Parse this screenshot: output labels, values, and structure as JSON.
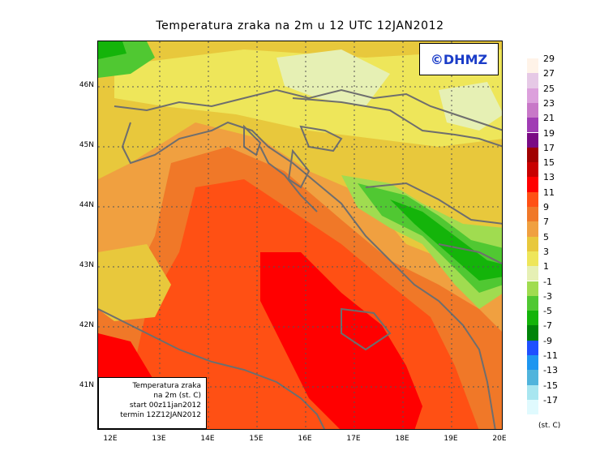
{
  "title": "Temperatura zraka na 2m u 12 UTC 12JAN2012",
  "logo": "©DHMZ",
  "info_box": {
    "line1": "Temperatura zraka",
    "line2": "na 2m (st. C)",
    "line3": "start 00z11jan2012",
    "line4": "termin 12Z12JAN2012"
  },
  "lat_labels": [
    "46N",
    "45N",
    "44N",
    "43N",
    "42N",
    "41N"
  ],
  "lon_labels": [
    "12E",
    "13E",
    "14E",
    "15E",
    "16E",
    "17E",
    "18E",
    "19E",
    "20E"
  ],
  "legend": {
    "unit": "(st. C)",
    "labels": [
      "29",
      "27",
      "25",
      "23",
      "21",
      "19",
      "17",
      "15",
      "13",
      "11",
      "9",
      "7",
      "5",
      "3",
      "1",
      "-1",
      "-3",
      "-5",
      "-7",
      "-9",
      "-11",
      "-13",
      "-15",
      "-17"
    ],
    "colors": [
      "#fff3e8",
      "#e6c9e6",
      "#dca0dc",
      "#c878c8",
      "#a03cb4",
      "#7a0a84",
      "#a00000",
      "#c80000",
      "#ff0000",
      "#ff5014",
      "#f07828",
      "#f0a040",
      "#e8c83c",
      "#eee65a",
      "#e6f0b4",
      "#a0dc50",
      "#50c832",
      "#14b40a",
      "#00840a",
      "#1e50ff",
      "#1e96f0",
      "#50b4dc",
      "#a8e6f0",
      "#e0fafe"
    ]
  }
}
